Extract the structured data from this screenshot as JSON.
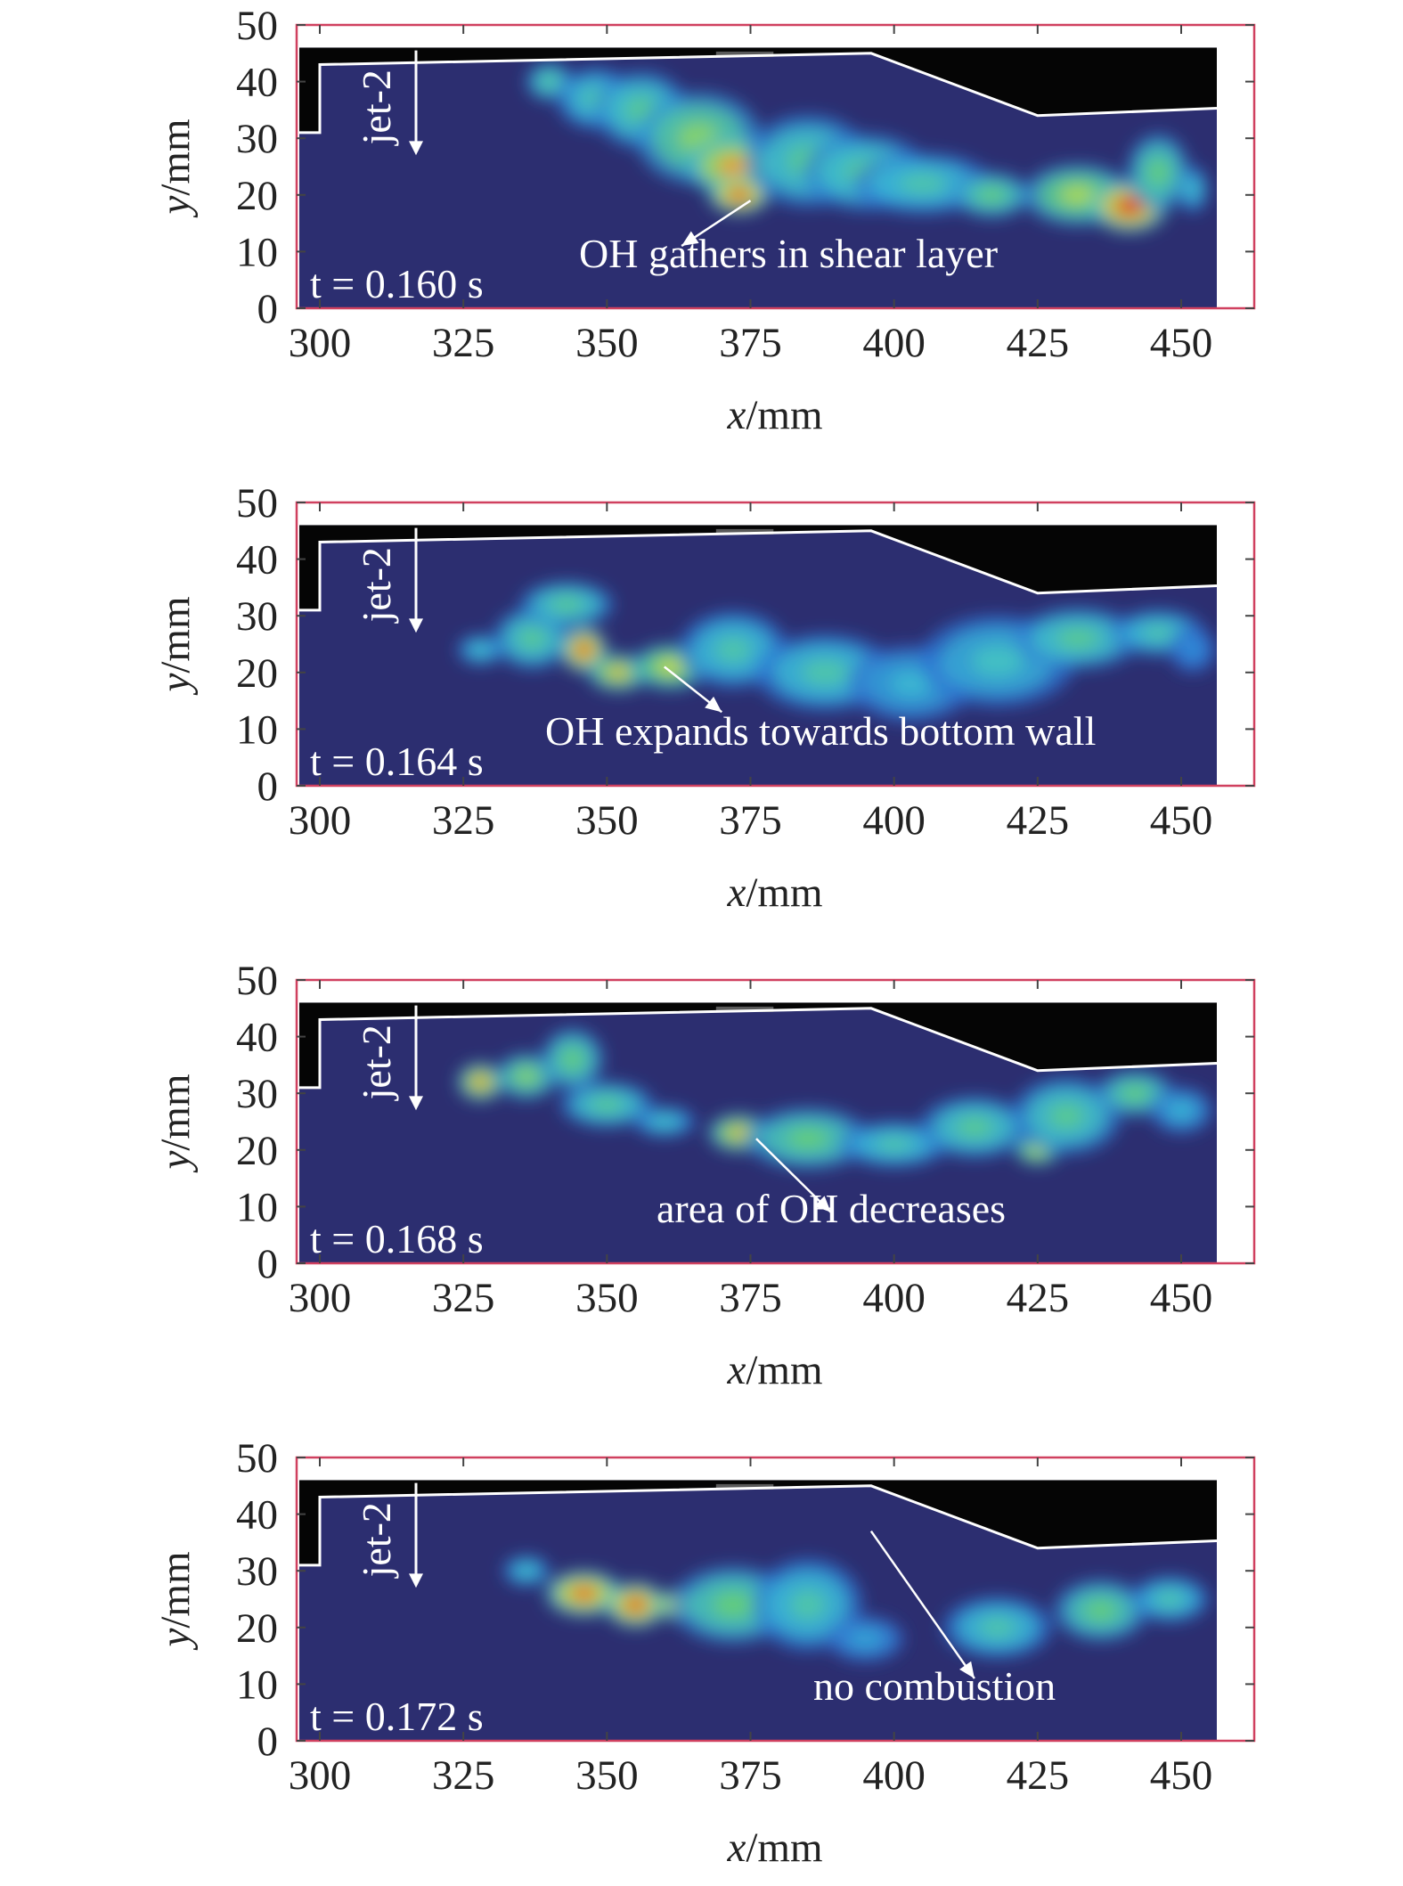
{
  "chart_data": [
    {
      "type": "heatmap",
      "time_label": "t = 0.160 s",
      "jet_label": "jet-2",
      "annotation": "OH gathers in shear layer",
      "arrow": {
        "from": [
          375,
          19
        ],
        "to": [
          363,
          11
        ]
      },
      "xlabel": "x/mm",
      "ylabel": "y/mm",
      "xlim": [
        295,
        460
      ],
      "ylim": [
        0,
        50
      ],
      "xticks": [
        300,
        325,
        350,
        375,
        400,
        425,
        450
      ],
      "yticks": [
        0,
        10,
        20,
        30,
        40,
        50
      ],
      "blobs": [
        [
          340,
          40,
          3,
          2.5,
          0.55
        ],
        [
          348,
          37,
          5,
          4,
          0.5
        ],
        [
          356,
          35,
          6,
          5,
          0.55
        ],
        [
          366,
          30,
          8,
          6,
          0.65
        ],
        [
          372,
          25,
          6,
          4,
          0.85
        ],
        [
          373,
          20,
          4,
          2.5,
          0.95
        ],
        [
          385,
          26,
          8,
          6,
          0.55
        ],
        [
          395,
          24,
          8,
          5,
          0.55
        ],
        [
          405,
          22,
          9,
          4,
          0.5
        ],
        [
          417,
          20,
          5,
          3,
          0.6
        ],
        [
          432,
          20,
          7,
          4,
          0.7
        ],
        [
          441,
          18,
          5,
          3.5,
          0.98
        ],
        [
          446,
          24,
          4,
          5,
          0.6
        ],
        [
          452,
          21,
          2,
          3,
          0.45
        ]
      ]
    },
    {
      "type": "heatmap",
      "time_label": "t = 0.164 s",
      "jet_label": "jet-2",
      "annotation": "OH expands towards bottom wall",
      "arrow": {
        "from": [
          360,
          21
        ],
        "to": [
          370,
          13
        ]
      },
      "xlabel": "x/mm",
      "ylabel": "y/mm",
      "xlim": [
        295,
        460
      ],
      "ylim": [
        0,
        50
      ],
      "xticks": [
        300,
        325,
        350,
        375,
        400,
        425,
        450
      ],
      "yticks": [
        0,
        10,
        20,
        30,
        40,
        50
      ],
      "blobs": [
        [
          328,
          24,
          3,
          2,
          0.45
        ],
        [
          337,
          26,
          5,
          4,
          0.55
        ],
        [
          343,
          32,
          6,
          3,
          0.55
        ],
        [
          346,
          24,
          3,
          3,
          0.95
        ],
        [
          352,
          20,
          4,
          2.5,
          0.8
        ],
        [
          361,
          21,
          5,
          3,
          0.75
        ],
        [
          372,
          24,
          7,
          5,
          0.5
        ],
        [
          388,
          20,
          9,
          5,
          0.5
        ],
        [
          403,
          18,
          8,
          5,
          0.4
        ],
        [
          418,
          22,
          10,
          6,
          0.45
        ],
        [
          432,
          26,
          8,
          4,
          0.55
        ],
        [
          446,
          27,
          6,
          3,
          0.5
        ],
        [
          452,
          24,
          3,
          3,
          0.3
        ]
      ]
    },
    {
      "type": "heatmap",
      "time_label": "t = 0.168 s",
      "jet_label": "jet-2",
      "annotation": "area of OH decreases",
      "arrow": {
        "from": [
          376,
          22
        ],
        "to": [
          389,
          9
        ]
      },
      "xlabel": "x/mm",
      "ylabel": "y/mm",
      "xlim": [
        295,
        460
      ],
      "ylim": [
        0,
        50
      ],
      "xticks": [
        300,
        325,
        350,
        375,
        400,
        425,
        450
      ],
      "yticks": [
        0,
        10,
        20,
        30,
        40,
        50
      ],
      "blobs": [
        [
          328,
          32,
          3,
          2.5,
          0.85
        ],
        [
          336,
          33,
          4,
          3,
          0.65
        ],
        [
          344,
          36,
          4,
          4,
          0.6
        ],
        [
          350,
          28,
          6,
          3,
          0.55
        ],
        [
          360,
          25,
          4,
          2,
          0.45
        ],
        [
          373,
          23,
          4,
          2.5,
          0.8
        ],
        [
          385,
          22,
          8,
          4,
          0.6
        ],
        [
          400,
          21,
          7,
          3,
          0.5
        ],
        [
          414,
          24,
          7,
          4,
          0.55
        ],
        [
          425,
          20,
          3,
          2,
          0.75
        ],
        [
          430,
          26,
          7,
          5,
          0.55
        ],
        [
          442,
          30,
          5,
          3,
          0.6
        ],
        [
          450,
          27,
          4,
          3,
          0.4
        ]
      ]
    },
    {
      "type": "heatmap",
      "time_label": "t = 0.172 s",
      "jet_label": "jet-2",
      "annotation": "no combustion",
      "arrow": {
        "from": [
          396,
          37
        ],
        "to": [
          414,
          11
        ]
      },
      "xlabel": "x/mm",
      "ylabel": "y/mm",
      "xlim": [
        295,
        460
      ],
      "ylim": [
        0,
        50
      ],
      "xticks": [
        300,
        325,
        350,
        375,
        400,
        425,
        450
      ],
      "yticks": [
        0,
        10,
        20,
        30,
        40,
        50
      ],
      "blobs": [
        [
          336,
          30,
          3,
          2,
          0.45
        ],
        [
          346,
          26,
          5,
          3,
          0.92
        ],
        [
          355,
          24,
          4,
          3,
          0.95
        ],
        [
          362,
          24,
          3,
          2,
          0.85
        ],
        [
          372,
          24,
          8,
          5,
          0.6
        ],
        [
          385,
          24,
          7,
          6,
          0.5
        ],
        [
          395,
          18,
          5,
          3,
          0.35
        ],
        [
          418,
          20,
          7,
          4,
          0.5
        ],
        [
          436,
          23,
          6,
          4,
          0.6
        ],
        [
          448,
          25,
          5,
          3,
          0.5
        ]
      ]
    }
  ]
}
